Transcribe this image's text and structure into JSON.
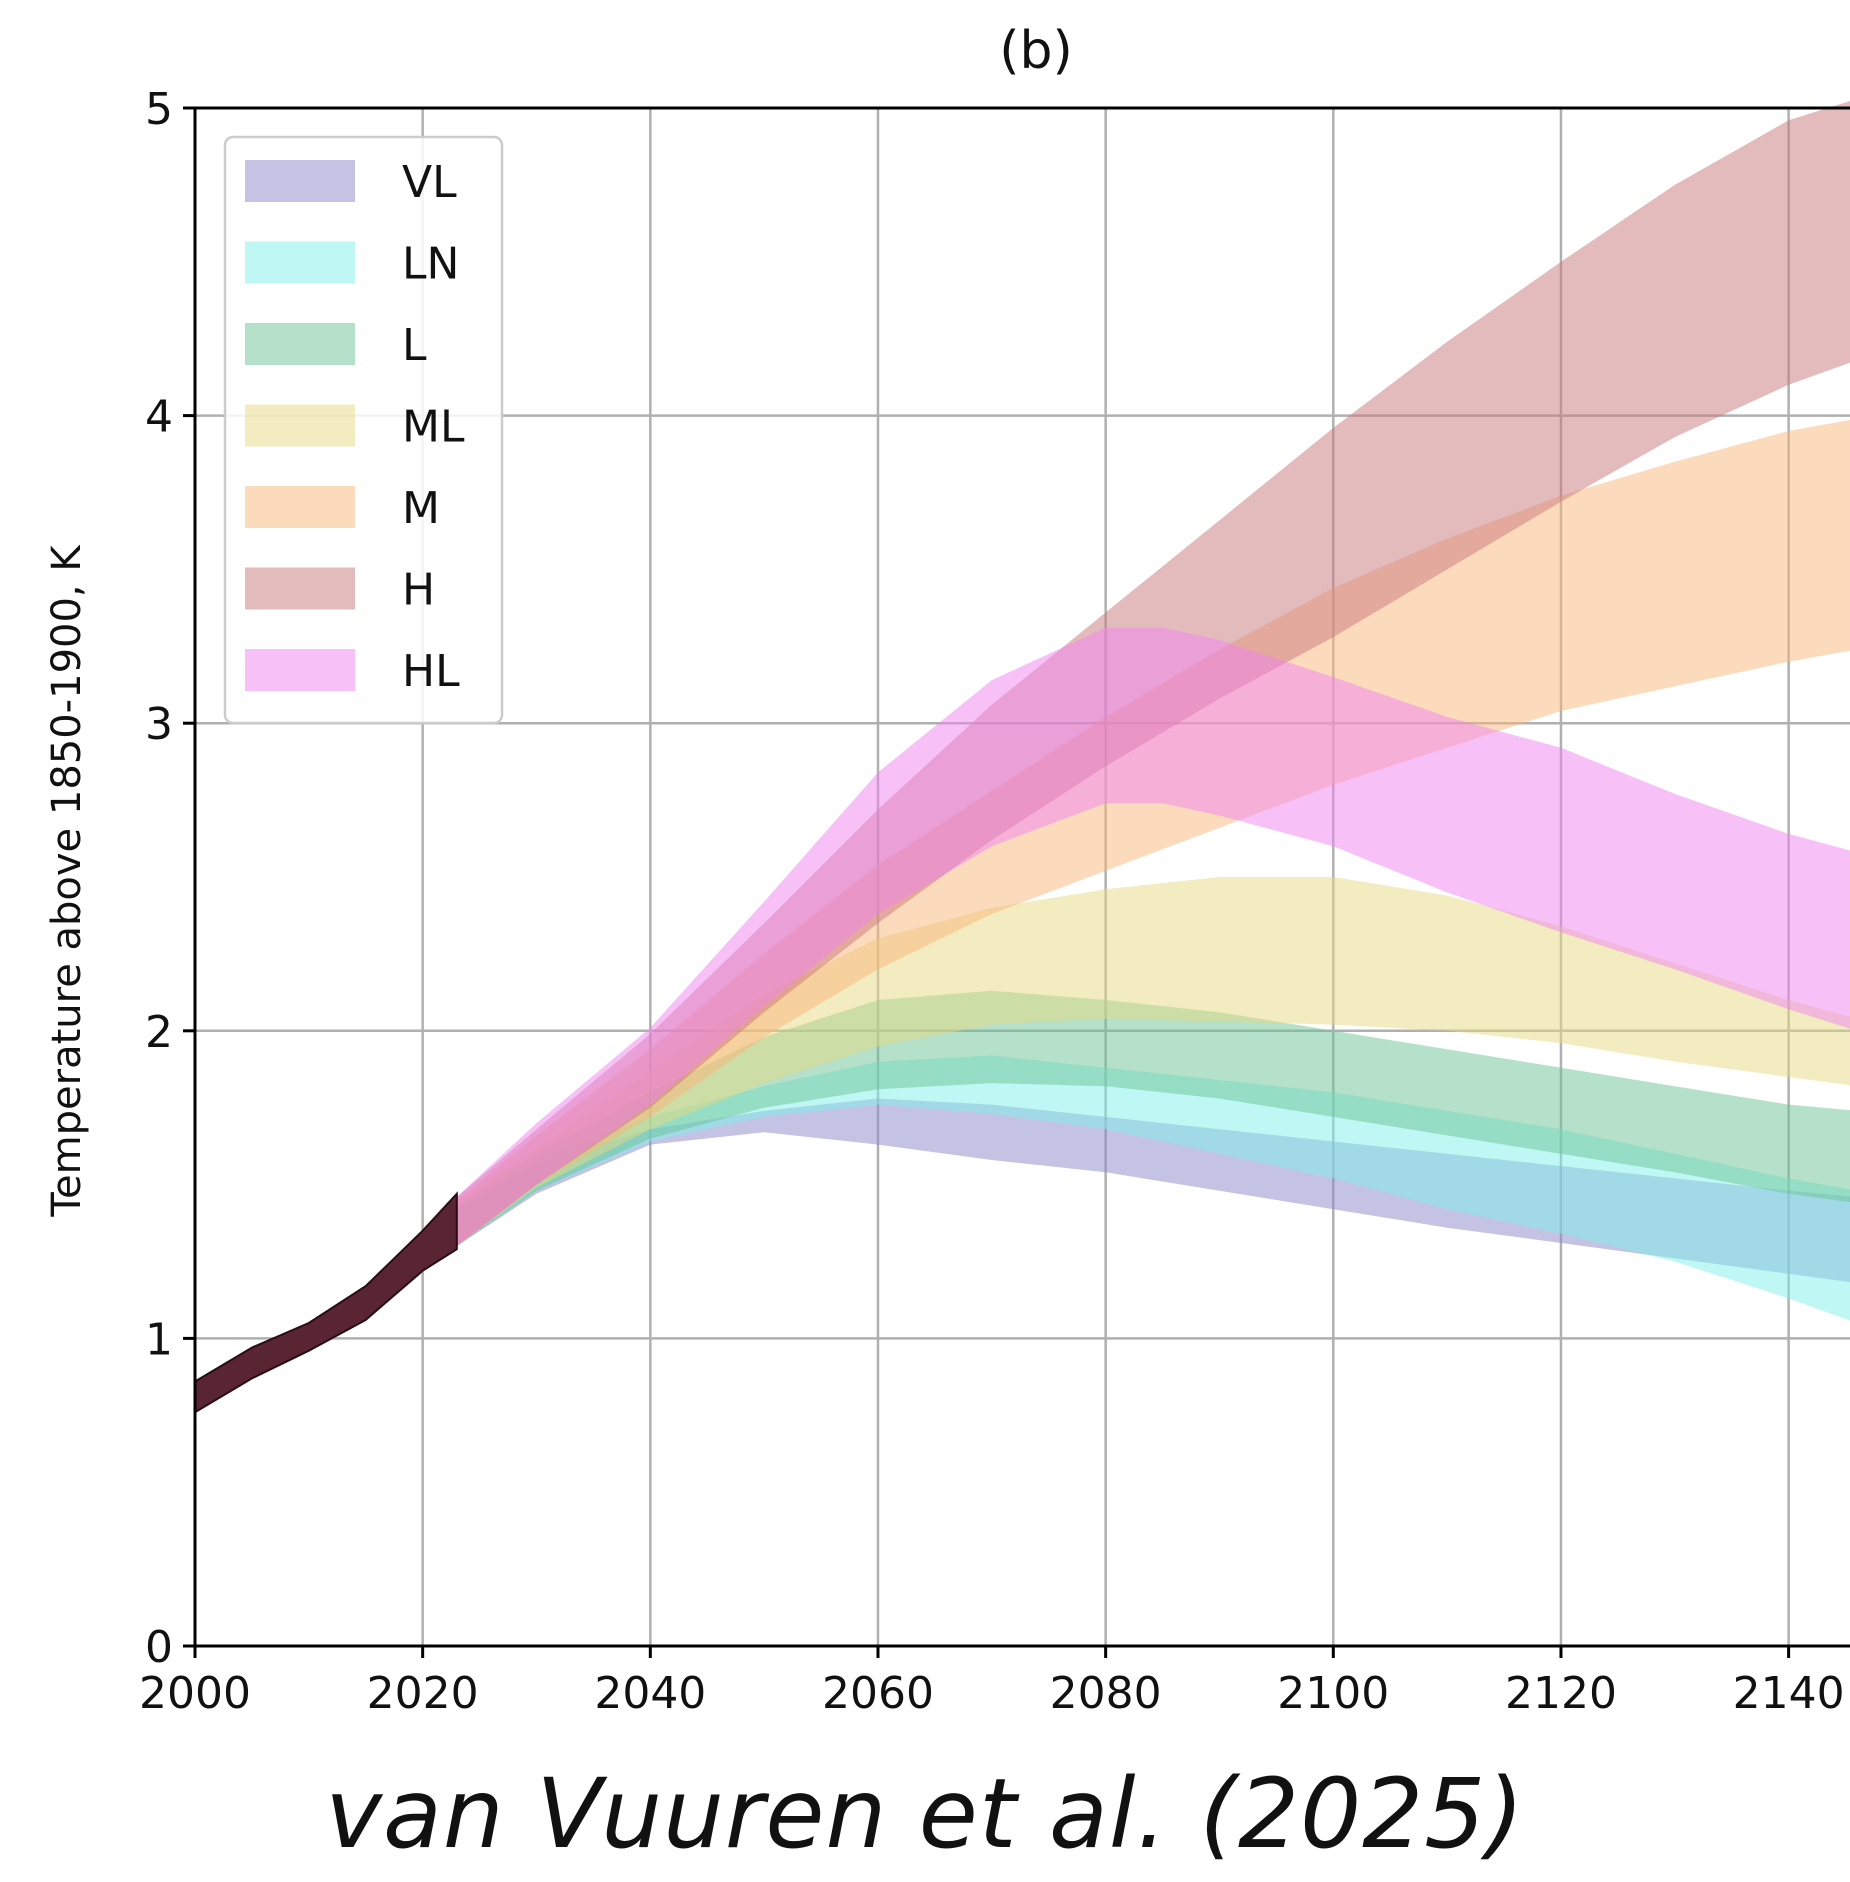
{
  "chart_data": {
    "type": "area",
    "title": "(b)",
    "ylabel": "Temperature above 1850-1900, K",
    "xlabel": "",
    "xlim": [
      2000,
      2146
    ],
    "ylim": [
      0,
      5
    ],
    "x_ticks": [
      2000,
      2020,
      2040,
      2060,
      2080,
      2100,
      2120,
      2140
    ],
    "y_ticks": [
      0,
      1,
      2,
      3,
      4,
      5
    ],
    "grid": true,
    "legend_position": "upper-left",
    "historical": {
      "color": "#5a2533",
      "x": [
        2000,
        2005,
        2010,
        2015,
        2020,
        2023
      ],
      "lower": [
        0.76,
        0.87,
        0.96,
        1.06,
        1.22,
        1.29
      ],
      "upper": [
        0.86,
        0.97,
        1.05,
        1.17,
        1.35,
        1.47
      ]
    },
    "series": [
      {
        "name": "VL",
        "color": "#8c88c8",
        "x": [
          2023,
          2030,
          2040,
          2050,
          2060,
          2070,
          2080,
          2090,
          2100,
          2110,
          2120,
          2130,
          2140,
          2146
        ],
        "lower": [
          1.3,
          1.47,
          1.63,
          1.67,
          1.63,
          1.58,
          1.54,
          1.48,
          1.42,
          1.36,
          1.31,
          1.26,
          1.21,
          1.18
        ],
        "upper": [
          1.42,
          1.57,
          1.68,
          1.74,
          1.78,
          1.76,
          1.72,
          1.68,
          1.64,
          1.6,
          1.56,
          1.52,
          1.48,
          1.46
        ]
      },
      {
        "name": "LN",
        "color": "#7ef0ea",
        "x": [
          2023,
          2030,
          2040,
          2050,
          2060,
          2070,
          2080,
          2090,
          2100,
          2110,
          2120,
          2130,
          2140,
          2146
        ],
        "lower": [
          1.3,
          1.48,
          1.64,
          1.72,
          1.76,
          1.73,
          1.68,
          1.6,
          1.52,
          1.42,
          1.34,
          1.25,
          1.13,
          1.05
        ],
        "upper": [
          1.42,
          1.58,
          1.72,
          1.82,
          1.9,
          1.92,
          1.88,
          1.84,
          1.8,
          1.74,
          1.68,
          1.6,
          1.52,
          1.48
        ]
      },
      {
        "name": "L",
        "color": "#6cc496",
        "x": [
          2023,
          2030,
          2040,
          2050,
          2060,
          2070,
          2080,
          2090,
          2100,
          2110,
          2120,
          2130,
          2140,
          2146
        ],
        "lower": [
          1.3,
          1.48,
          1.65,
          1.75,
          1.81,
          1.83,
          1.82,
          1.78,
          1.72,
          1.66,
          1.6,
          1.54,
          1.47,
          1.44
        ],
        "upper": [
          1.43,
          1.6,
          1.8,
          1.98,
          2.1,
          2.13,
          2.1,
          2.06,
          2.0,
          1.94,
          1.88,
          1.82,
          1.76,
          1.74
        ]
      },
      {
        "name": "ML",
        "color": "#e6da82",
        "x": [
          2023,
          2030,
          2040,
          2050,
          2060,
          2070,
          2080,
          2090,
          2100,
          2110,
          2120,
          2130,
          2140,
          2146
        ],
        "lower": [
          1.3,
          1.49,
          1.68,
          1.83,
          1.95,
          2.02,
          2.04,
          2.03,
          2.02,
          2.0,
          1.96,
          1.9,
          1.85,
          1.82
        ],
        "upper": [
          1.44,
          1.62,
          1.87,
          2.12,
          2.3,
          2.4,
          2.46,
          2.5,
          2.5,
          2.44,
          2.34,
          2.22,
          2.1,
          2.04
        ]
      },
      {
        "name": "M",
        "color": "#f9b67a",
        "x": [
          2023,
          2030,
          2040,
          2050,
          2060,
          2070,
          2080,
          2090,
          2100,
          2110,
          2120,
          2130,
          2140,
          2146
        ],
        "lower": [
          1.3,
          1.5,
          1.72,
          1.98,
          2.2,
          2.38,
          2.52,
          2.66,
          2.8,
          2.92,
          3.04,
          3.12,
          3.2,
          3.24
        ],
        "upper": [
          1.45,
          1.66,
          1.94,
          2.25,
          2.54,
          2.78,
          3.02,
          3.24,
          3.44,
          3.6,
          3.74,
          3.85,
          3.95,
          3.99
        ]
      },
      {
        "name": "H",
        "color": "#c9787c",
        "x": [
          2023,
          2030,
          2040,
          2050,
          2060,
          2070,
          2080,
          2090,
          2100,
          2110,
          2120,
          2130,
          2140,
          2146
        ],
        "lower": [
          1.3,
          1.5,
          1.75,
          2.06,
          2.35,
          2.62,
          2.86,
          3.08,
          3.28,
          3.5,
          3.72,
          3.93,
          4.1,
          4.18
        ],
        "upper": [
          1.46,
          1.68,
          1.99,
          2.35,
          2.72,
          3.06,
          3.36,
          3.66,
          3.96,
          4.24,
          4.5,
          4.75,
          4.96,
          5.03
        ]
      },
      {
        "name": "HL",
        "color": "#f084f2",
        "x": [
          2023,
          2030,
          2040,
          2050,
          2060,
          2070,
          2080,
          2085,
          2090,
          2100,
          2110,
          2120,
          2130,
          2140,
          2146
        ],
        "lower": [
          1.3,
          1.5,
          1.76,
          2.08,
          2.38,
          2.6,
          2.74,
          2.74,
          2.7,
          2.6,
          2.45,
          2.32,
          2.2,
          2.07,
          2.0
        ],
        "upper": [
          1.46,
          1.7,
          2.01,
          2.42,
          2.84,
          3.14,
          3.31,
          3.31,
          3.27,
          3.15,
          3.02,
          2.92,
          2.77,
          2.64,
          2.58
        ]
      }
    ]
  },
  "caption": "van Vuuren et al. (2025)"
}
